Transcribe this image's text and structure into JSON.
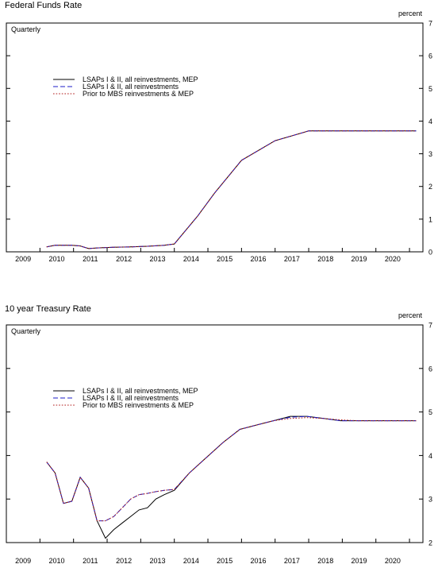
{
  "charts": [
    {
      "title": "Federal Funds Rate",
      "unit_label": "percent",
      "frequency_label": "Quarterly",
      "chart_data": {
        "type": "line",
        "title": "Federal Funds Rate",
        "ylabel": "percent",
        "xlabel": "",
        "ylim": [
          0,
          7
        ],
        "yticks": [
          0,
          1,
          2,
          3,
          4,
          5,
          6,
          7
        ],
        "xlim": [
          2008.5,
          2020.9
        ],
        "x_categories": [
          "2009",
          "2010",
          "2011",
          "2012",
          "2013",
          "2014",
          "2015",
          "2016",
          "2017",
          "2018",
          "2019",
          "2020"
        ],
        "legend_position": "upper-left",
        "series": [
          {
            "name": "LSAPs I & II, all reinvestments, MEP",
            "color": "#000000",
            "dash": "solid",
            "x": [
              2009.7,
              2009.95,
              2010.2,
              2010.45,
              2010.7,
              2010.95,
              2011.2,
              2011.7,
              2012.2,
              2012.7,
              2013.2,
              2013.5,
              2014.2,
              2014.7,
              2015.5,
              2016.5,
              2017.5,
              2018.5,
              2019.5,
              2020.2,
              2020.7
            ],
            "values": [
              0.15,
              0.2,
              0.2,
              0.2,
              0.18,
              0.1,
              0.12,
              0.14,
              0.15,
              0.17,
              0.2,
              0.24,
              1.1,
              1.8,
              2.8,
              3.4,
              3.7,
              3.7,
              3.7,
              3.7,
              3.7
            ]
          },
          {
            "name": "LSAPs I & II, all reinvestments",
            "color": "#1c1cc8",
            "dash": "dashed",
            "x": [
              2009.7,
              2009.95,
              2010.2,
              2010.45,
              2010.7,
              2010.95,
              2011.2,
              2011.7,
              2012.2,
              2012.7,
              2013.2,
              2013.5,
              2014.2,
              2014.7,
              2015.5,
              2016.5,
              2017.5,
              2018.5,
              2019.5,
              2020.2,
              2020.7
            ],
            "values": [
              0.15,
              0.2,
              0.2,
              0.2,
              0.18,
              0.1,
              0.12,
              0.14,
              0.15,
              0.17,
              0.2,
              0.24,
              1.1,
              1.8,
              2.8,
              3.4,
              3.7,
              3.7,
              3.7,
              3.7,
              3.7
            ]
          },
          {
            "name": "Prior to MBS reinvestments & MEP",
            "color": "#b01818",
            "dash": "dotted",
            "x": [
              2009.7,
              2009.95,
              2010.2,
              2010.45,
              2010.7,
              2010.95,
              2011.2,
              2011.7,
              2012.2,
              2012.7,
              2013.2,
              2013.5,
              2014.2,
              2014.7,
              2015.5,
              2016.5,
              2017.5,
              2018.5,
              2019.5,
              2020.2,
              2020.7
            ],
            "values": [
              0.15,
              0.2,
              0.2,
              0.2,
              0.18,
              0.1,
              0.12,
              0.14,
              0.15,
              0.17,
              0.2,
              0.24,
              1.1,
              1.8,
              2.8,
              3.4,
              3.7,
              3.7,
              3.7,
              3.7,
              3.7
            ]
          }
        ]
      }
    },
    {
      "title": "10 year Treasury Rate",
      "unit_label": "percent",
      "frequency_label": "Quarterly",
      "chart_data": {
        "type": "line",
        "title": "10 year Treasury Rate",
        "ylabel": "percent",
        "xlabel": "",
        "ylim": [
          2,
          7
        ],
        "yticks": [
          2,
          3,
          4,
          5,
          6,
          7
        ],
        "xlim": [
          2008.5,
          2020.9
        ],
        "x_categories": [
          "2009",
          "2010",
          "2011",
          "2012",
          "2013",
          "2014",
          "2015",
          "2016",
          "2017",
          "2018",
          "2019",
          "2020"
        ],
        "legend_position": "upper-left",
        "series": [
          {
            "name": "LSAPs I & II, all reinvestments, MEP",
            "color": "#000000",
            "dash": "solid",
            "x": [
              2009.7,
              2009.95,
              2010.2,
              2010.45,
              2010.7,
              2010.95,
              2011.2,
              2011.45,
              2011.7,
              2011.95,
              2012.2,
              2012.45,
              2012.7,
              2012.95,
              2013.2,
              2013.5,
              2013.95,
              2014.45,
              2014.95,
              2015.45,
              2015.95,
              2016.45,
              2016.95,
              2017.45,
              2017.95,
              2018.45,
              2018.95,
              2019.45,
              2019.95,
              2020.45,
              2020.7
            ],
            "values": [
              3.85,
              3.6,
              2.9,
              2.95,
              3.5,
              3.25,
              2.5,
              2.1,
              2.3,
              2.45,
              2.6,
              2.75,
              2.8,
              3.0,
              3.1,
              3.2,
              3.6,
              3.95,
              4.3,
              4.6,
              4.7,
              4.8,
              4.9,
              4.9,
              4.85,
              4.8,
              4.8,
              4.8,
              4.8,
              4.8,
              4.8
            ]
          },
          {
            "name": "LSAPs I & II, all reinvestments",
            "color": "#1c1cc8",
            "dash": "dashed",
            "x": [
              2009.7,
              2009.95,
              2010.2,
              2010.45,
              2010.7,
              2010.95,
              2011.2,
              2011.45,
              2011.7,
              2011.95,
              2012.2,
              2012.45,
              2012.7,
              2012.95,
              2013.2,
              2013.5,
              2013.95,
              2014.45,
              2014.95,
              2015.45,
              2015.95,
              2016.45,
              2016.95,
              2017.45,
              2017.95,
              2018.45,
              2018.95,
              2019.45,
              2019.95,
              2020.45,
              2020.7
            ],
            "values": [
              3.85,
              3.6,
              2.9,
              2.95,
              3.5,
              3.25,
              2.5,
              2.5,
              2.6,
              2.8,
              3.0,
              3.1,
              3.13,
              3.17,
              3.2,
              3.22,
              3.6,
              3.95,
              4.3,
              4.6,
              4.7,
              4.8,
              4.88,
              4.9,
              4.85,
              4.8,
              4.8,
              4.8,
              4.8,
              4.8,
              4.8
            ]
          },
          {
            "name": "Prior to MBS reinvestments & MEP",
            "color": "#b01818",
            "dash": "dotted",
            "x": [
              2009.7,
              2009.95,
              2010.2,
              2010.45,
              2010.7,
              2010.95,
              2011.2,
              2011.45,
              2011.7,
              2011.95,
              2012.2,
              2012.45,
              2012.7,
              2012.95,
              2013.2,
              2013.5,
              2013.95,
              2014.45,
              2014.95,
              2015.45,
              2015.95,
              2016.45,
              2016.95,
              2017.45,
              2017.95,
              2018.45,
              2018.95,
              2019.45,
              2019.95,
              2020.45,
              2020.7
            ],
            "values": [
              3.85,
              3.6,
              2.9,
              2.95,
              3.5,
              3.25,
              2.5,
              2.5,
              2.6,
              2.8,
              3.0,
              3.1,
              3.13,
              3.17,
              3.2,
              3.22,
              3.6,
              3.95,
              4.3,
              4.6,
              4.7,
              4.8,
              4.85,
              4.87,
              4.85,
              4.82,
              4.8,
              4.8,
              4.8,
              4.8,
              4.8
            ]
          }
        ]
      }
    }
  ]
}
